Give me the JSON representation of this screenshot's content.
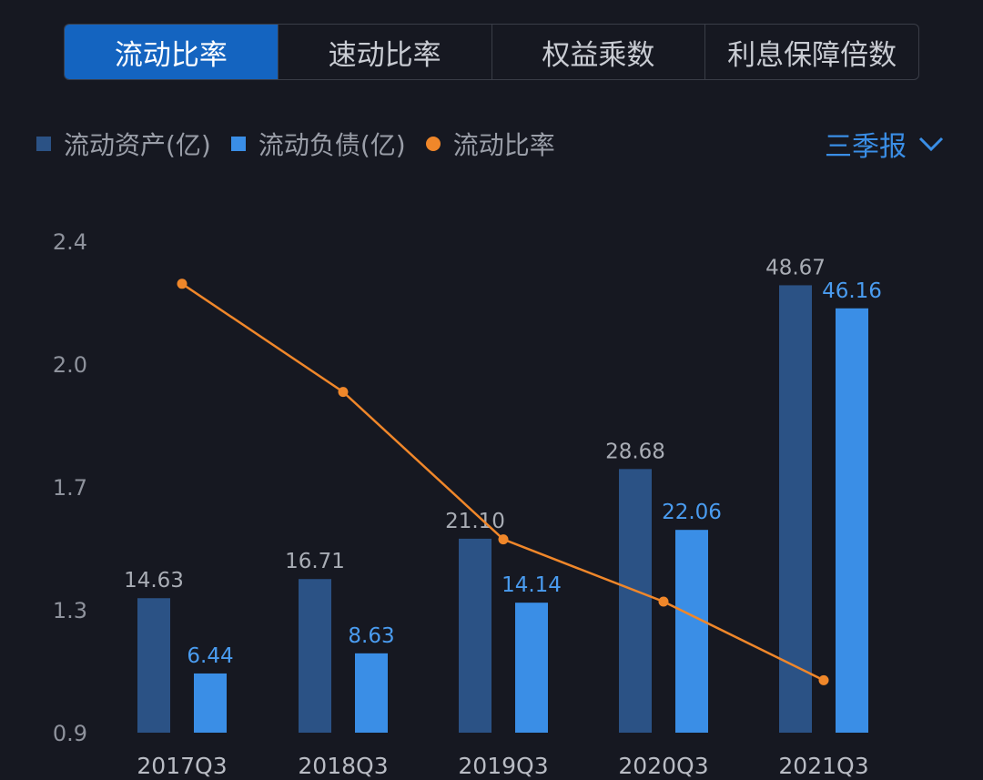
{
  "tabs": [
    {
      "label": "流动比率",
      "active": true
    },
    {
      "label": "速动比率",
      "active": false
    },
    {
      "label": "权益乘数",
      "active": false
    },
    {
      "label": "利息保障倍数",
      "active": false
    }
  ],
  "period_selector": {
    "label": "三季报",
    "icon": "chevron-down-icon"
  },
  "colors": {
    "current_assets": "#2b5285",
    "current_liabilities": "#3a8ee6",
    "current_ratio": "#f0872a",
    "active_tab": "#1464c0"
  },
  "chart_data": {
    "type": "bar",
    "categories": [
      "2017Q3",
      "2018Q3",
      "2019Q3",
      "2020Q3",
      "2021Q3"
    ],
    "series": [
      {
        "name": "流动资产(亿)",
        "type": "bar",
        "values": [
          14.63,
          16.71,
          21.1,
          28.68,
          48.67
        ],
        "labels": [
          "14.63",
          "16.71",
          "21.10",
          "28.68",
          "48.67"
        ]
      },
      {
        "name": "流动负债(亿)",
        "type": "bar",
        "values": [
          6.44,
          8.63,
          14.14,
          22.06,
          46.16
        ],
        "labels": [
          "6.44",
          "8.63",
          "14.14",
          "22.06",
          "46.16"
        ]
      },
      {
        "name": "流动比率",
        "type": "line",
        "values": [
          2.27,
          1.94,
          1.49,
          1.3,
          1.06
        ]
      }
    ],
    "y_ticks": [
      "2.4",
      "2.0",
      "1.7",
      "1.3",
      "0.9"
    ],
    "ratio_axis_range": [
      0.9,
      2.4
    ],
    "legend_position": "top-left",
    "grid": false
  }
}
